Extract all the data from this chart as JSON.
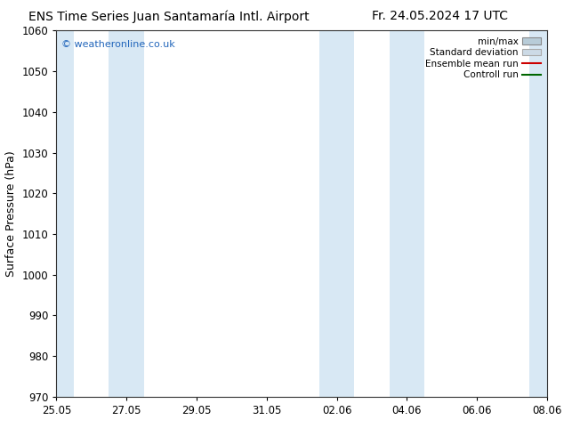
{
  "title_left": "ENS Time Series Juan Santamaría Intl. Airport",
  "title_right": "Fr. 24.05.2024 17 UTC",
  "ylabel": "Surface Pressure (hPa)",
  "ylim": [
    970,
    1060
  ],
  "yticks": [
    970,
    980,
    990,
    1000,
    1010,
    1020,
    1030,
    1040,
    1050,
    1060
  ],
  "xtick_labels": [
    "25.05",
    "27.05",
    "29.05",
    "31.05",
    "02.06",
    "04.06",
    "06.06",
    "08.06"
  ],
  "xtick_positions": [
    0,
    2,
    4,
    6,
    8,
    10,
    12,
    14
  ],
  "x_total": 14,
  "shaded_bands": [
    {
      "x_start": 0.0,
      "x_end": 0.5,
      "color": "#d8e8f4"
    },
    {
      "x_start": 1.5,
      "x_end": 2.5,
      "color": "#d8e8f4"
    },
    {
      "x_start": 7.5,
      "x_end": 8.5,
      "color": "#d8e8f4"
    },
    {
      "x_start": 9.5,
      "x_end": 10.5,
      "color": "#d8e8f4"
    },
    {
      "x_start": 13.5,
      "x_end": 14.0,
      "color": "#d8e8f4"
    }
  ],
  "watermark_text": "© weatheronline.co.uk",
  "watermark_color": "#2266bb",
  "legend_labels": [
    "min/max",
    "Standard deviation",
    "Ensemble mean run",
    "Controll run"
  ],
  "minmax_color": "#b8ccd8",
  "std_color": "#ccdae6",
  "ens_color": "#cc0000",
  "ctrl_color": "#006600",
  "background_color": "#ffffff",
  "plot_bg_color": "#ffffff",
  "title_fontsize": 10,
  "tick_fontsize": 8.5,
  "label_fontsize": 9
}
